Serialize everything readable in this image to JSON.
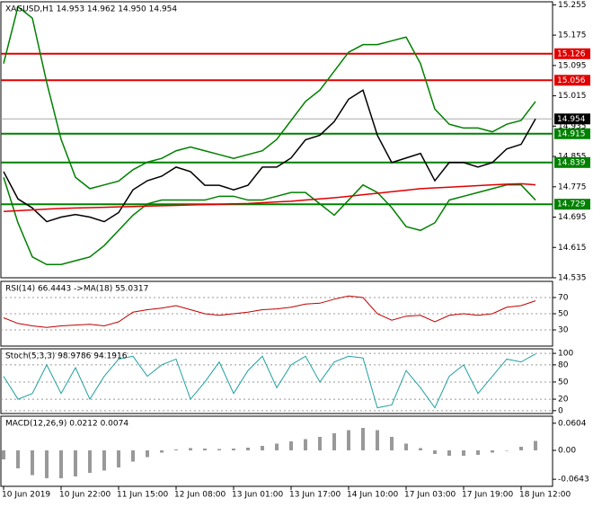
{
  "chart_data": [
    {
      "type": "line",
      "title": "XAGUSD,H1  14.953 14.962 14.950 14.954",
      "categories": [
        "10 Jun 2019",
        null,
        null,
        null,
        "10 Jun 22:00",
        null,
        null,
        null,
        "11 Jun 15:00",
        null,
        null,
        null,
        "12 Jun 08:00",
        null,
        null,
        null,
        "13 Jun 01:00",
        null,
        null,
        null,
        "13 Jun 17:00",
        null,
        null,
        null,
        "14 Jun 10:00",
        null,
        null,
        null,
        "17 Jun 03:00",
        null,
        null,
        null,
        "17 Jun 19:00",
        null,
        null,
        null,
        "18 Jun 12:00",
        null
      ],
      "series": [
        {
          "color": "#000000",
          "values": [
            14.815,
            14.743,
            14.719,
            14.683,
            14.695,
            14.702,
            14.695,
            14.683,
            14.707,
            14.767,
            14.791,
            14.803,
            14.827,
            14.815,
            14.779,
            14.779,
            14.767,
            14.779,
            14.827,
            14.827,
            14.851,
            14.899,
            14.911,
            14.947,
            15.006,
            15.03,
            14.911,
            14.839,
            14.851,
            14.863,
            14.791,
            14.839,
            14.839,
            14.827,
            14.839,
            14.875,
            14.887,
            14.954
          ]
        },
        {
          "color": "#008000",
          "values": [
            15.1,
            15.25,
            15.22,
            15.05,
            14.9,
            14.8,
            14.77,
            14.78,
            14.79,
            14.82,
            14.84,
            14.85,
            14.87,
            14.88,
            14.87,
            14.86,
            14.85,
            14.86,
            14.87,
            14.9,
            14.95,
            15.0,
            15.03,
            15.08,
            15.13,
            15.15,
            15.15,
            15.16,
            15.17,
            15.1,
            14.98,
            14.94,
            14.93,
            14.93,
            14.92,
            14.94,
            14.95,
            15.0
          ]
        },
        {
          "color": "#008000",
          "values": [
            14.8,
            14.68,
            14.59,
            14.57,
            14.57,
            14.58,
            14.59,
            14.62,
            14.66,
            14.7,
            14.73,
            14.74,
            14.74,
            14.74,
            14.74,
            14.75,
            14.75,
            14.74,
            14.74,
            14.75,
            14.76,
            14.76,
            14.73,
            14.7,
            14.74,
            14.78,
            14.76,
            14.72,
            14.67,
            14.66,
            14.68,
            14.74,
            14.75,
            14.76,
            14.77,
            14.78,
            14.78,
            14.74
          ]
        },
        {
          "color": "#e00000",
          "values": [
            14.71,
            14.712,
            14.714,
            14.716,
            14.718,
            14.719,
            14.72,
            14.721,
            14.722,
            14.723,
            14.724,
            14.725,
            14.726,
            14.727,
            14.728,
            14.729,
            14.73,
            14.731,
            14.733,
            14.735,
            14.737,
            14.74,
            14.743,
            14.746,
            14.75,
            14.754,
            14.758,
            14.762,
            14.766,
            14.77,
            14.772,
            14.774,
            14.776,
            14.778,
            14.78,
            14.782,
            14.783,
            14.78
          ]
        }
      ],
      "levels": [
        {
          "value": 15.126,
          "color": "#e00000"
        },
        {
          "value": 15.056,
          "color": "#e00000"
        },
        {
          "value": 14.915,
          "color": "#008000"
        },
        {
          "value": 14.839,
          "color": "#008000"
        },
        {
          "value": 14.729,
          "color": "#008000"
        }
      ],
      "last": 14.954,
      "ylim": [
        14.535,
        15.263
      ],
      "yticks": [
        15.255,
        15.175,
        15.095,
        15.015,
        14.935,
        14.855,
        14.775,
        14.695,
        14.615,
        14.535
      ]
    },
    {
      "type": "line",
      "title": "RSI(14) 66.4443  ->MA(18) 55.0317",
      "grid": true,
      "series": [
        {
          "color": "#c00000",
          "values": [
            45,
            38,
            35,
            33,
            35,
            36,
            37,
            35,
            40,
            52,
            55,
            57,
            60,
            55,
            50,
            48,
            50,
            52,
            55,
            56,
            58,
            62,
            63,
            68,
            72,
            70,
            50,
            42,
            47,
            48,
            40,
            48,
            50,
            48,
            50,
            58,
            60,
            66
          ]
        }
      ],
      "ylim": [
        10,
        90
      ],
      "yticks": [
        70,
        50,
        30
      ]
    },
    {
      "type": "line",
      "title": "Stoch(5,3,3) 98.9786 94.1916",
      "grid": true,
      "series": [
        {
          "color": "#20a0a0",
          "values": [
            60,
            20,
            30,
            80,
            30,
            75,
            20,
            60,
            90,
            95,
            60,
            80,
            90,
            20,
            50,
            85,
            30,
            70,
            95,
            40,
            80,
            95,
            50,
            85,
            95,
            92,
            5,
            10,
            70,
            40,
            5,
            60,
            80,
            30,
            60,
            90,
            85,
            99
          ]
        }
      ],
      "ylim": [
        -5,
        108
      ],
      "yticks": [
        100,
        80,
        50,
        20,
        0
      ]
    },
    {
      "type": "bar",
      "title": "MACD(12,26,9) 0.0212 0.0074",
      "series": [
        {
          "color": "#999999",
          "values": [
            -0.02,
            -0.04,
            -0.055,
            -0.062,
            -0.062,
            -0.058,
            -0.05,
            -0.045,
            -0.038,
            -0.025,
            -0.015,
            -0.005,
            0.002,
            0.005,
            0.004,
            0.003,
            0.004,
            0.006,
            0.01,
            0.015,
            0.02,
            0.025,
            0.03,
            0.038,
            0.045,
            0.05,
            0.045,
            0.03,
            0.015,
            0.005,
            -0.008,
            -0.012,
            -0.012,
            -0.01,
            -0.005,
            0.0,
            0.008,
            0.021
          ]
        }
      ],
      "ylim": [
        -0.08,
        0.076
      ],
      "yticks": [
        0.0604,
        {
          "value": 0,
          "label": "0.00"
        },
        -0.0643
      ]
    }
  ]
}
